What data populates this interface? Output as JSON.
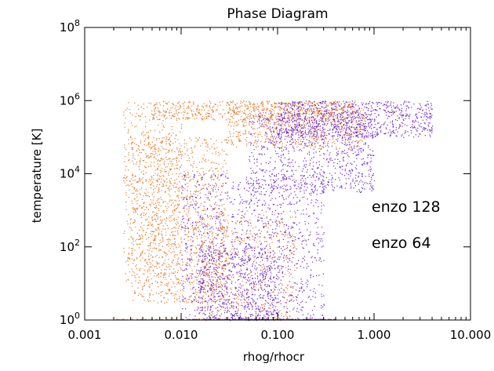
{
  "chart_data": {
    "type": "scatter",
    "title": "Phase Diagram",
    "xlabel": "rhog/rhocr",
    "ylabel": "temperature [K]",
    "x_scale": "log",
    "y_scale": "log",
    "xlim": [
      0.001,
      10
    ],
    "ylim": [
      1,
      100000000
    ],
    "grid": false,
    "legend_position": "right",
    "x_ticks": [
      {
        "value": 0.001,
        "label": "0.001"
      },
      {
        "value": 0.01,
        "label": "0.010"
      },
      {
        "value": 0.1,
        "label": "0.100"
      },
      {
        "value": 1,
        "label": "1.000"
      },
      {
        "value": 10,
        "label": "10.000"
      }
    ],
    "y_ticks": [
      {
        "value": 1,
        "base": "10",
        "exp": "0"
      },
      {
        "value": 100,
        "base": "10",
        "exp": "2"
      },
      {
        "value": 10000,
        "base": "10",
        "exp": "4"
      },
      {
        "value": 1000000,
        "base": "10",
        "exp": "6"
      },
      {
        "value": 100000000,
        "base": "10",
        "exp": "8"
      }
    ],
    "series": [
      {
        "name": "enzo 128",
        "color": "#e8731c",
        "cloud": [
          {
            "x_range": [
              0.003,
              0.03
            ],
            "y_range": [
              3,
              100000
            ],
            "weight": 0.35
          },
          {
            "x_range": [
              0.0025,
              0.01
            ],
            "y_range": [
              10,
              1000000
            ],
            "weight": 0.15
          },
          {
            "x_range": [
              0.03,
              0.8
            ],
            "y_range": [
              50000,
              1000000
            ],
            "weight": 0.2
          },
          {
            "x_range": [
              0.015,
              0.15
            ],
            "y_range": [
              1,
              1000
            ],
            "weight": 0.15
          },
          {
            "x_range": [
              0.005,
              0.6
            ],
            "y_range": [
              300000,
              1000000
            ],
            "weight": 0.15
          }
        ],
        "floor": {
          "x_range": [
            0.002,
            0.4
          ],
          "y": 1
        }
      },
      {
        "name": "enzo 64",
        "color": "#6a1ed0",
        "cloud": [
          {
            "x_range": [
              0.01,
              0.3
            ],
            "y_range": [
              1,
              10000
            ],
            "weight": 0.35
          },
          {
            "x_range": [
              0.05,
              1.0
            ],
            "y_range": [
              3000,
              500000
            ],
            "weight": 0.25
          },
          {
            "x_range": [
              0.1,
              4.0
            ],
            "y_range": [
              100000,
              1000000
            ],
            "weight": 0.25
          },
          {
            "x_range": [
              0.015,
              0.1
            ],
            "y_range": [
              1,
              100
            ],
            "weight": 0.15
          }
        ],
        "floor": {
          "x_range": [
            0.01,
            0.4
          ],
          "y": 1
        }
      }
    ]
  }
}
